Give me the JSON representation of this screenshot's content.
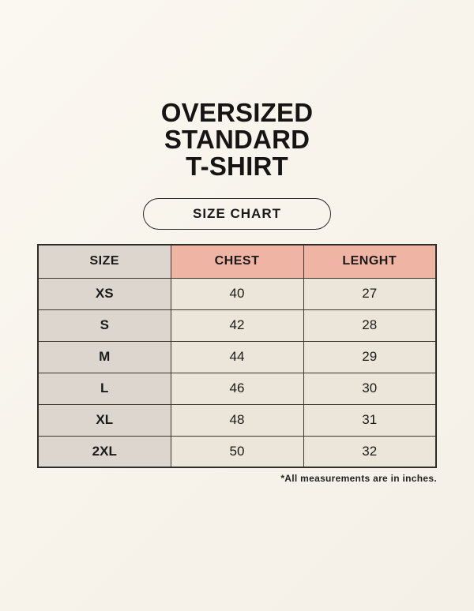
{
  "page": {
    "title_lines": [
      "OVERSIZED",
      "STANDARD",
      "T-SHIRT"
    ],
    "size_chart_button_label": "SIZE CHART",
    "footnote": "*All measurements are in inches."
  },
  "chart_data": {
    "type": "table",
    "title": "OVERSIZED STANDARD T-SHIRT SIZE CHART",
    "columns": [
      "SIZE",
      "CHEST",
      "LENGHT"
    ],
    "rows": [
      [
        "XS",
        "40",
        "27"
      ],
      [
        "S",
        "42",
        "28"
      ],
      [
        "M",
        "44",
        "29"
      ],
      [
        "L",
        "46",
        "30"
      ],
      [
        "XL",
        "48",
        "31"
      ],
      [
        "2XL",
        "50",
        "32"
      ]
    ],
    "units": "inches",
    "layout": {
      "header_accent_columns": [
        "CHEST",
        "LENGHT"
      ],
      "grid": true
    }
  },
  "colors": {
    "background": "#f8f4ec",
    "size_column_bg": "#dcd6cf",
    "header_accent_bg": "#efb4a3",
    "value_cell_bg": "#ece5d9",
    "table_border": "#3a372f",
    "text": "#1b1a18"
  }
}
